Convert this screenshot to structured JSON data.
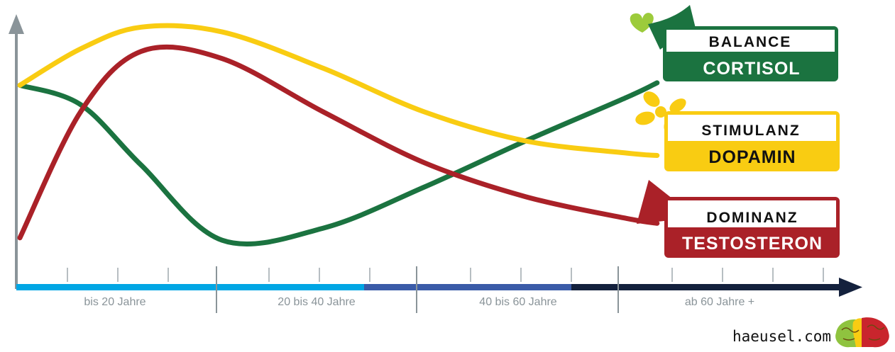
{
  "chart_data": {
    "type": "line",
    "title": "",
    "xlabel": "",
    "ylabel": "",
    "x_scale": "Lebensalter",
    "age_bands": [
      {
        "label": "bis 20 Jahre",
        "color": "#00a6e4"
      },
      {
        "label": "20 bis 40 Jahre",
        "color": "#00a6e4"
      },
      {
        "label": "40 bis 60 Jahre",
        "color": "#3a5ba8"
      },
      {
        "label": "ab 60 Jahre +",
        "color": "#14213d"
      }
    ],
    "x": [
      0,
      10,
      20,
      30,
      40,
      50,
      60,
      70,
      80
    ],
    "ylim": [
      0,
      100
    ],
    "series": [
      {
        "key": "cortisol",
        "top_label": "BALANCE",
        "name": "CORTISOL",
        "color": "#1b7340",
        "icon": "heart-icon",
        "values": [
          [
            0,
            73
          ],
          [
            6,
            65
          ],
          [
            12,
            40
          ],
          [
            20,
            9
          ],
          [
            30,
            14
          ],
          [
            40,
            31
          ],
          [
            50,
            50
          ],
          [
            60,
            68
          ],
          [
            63,
            74
          ]
        ]
      },
      {
        "key": "dopamin",
        "top_label": "STIMULANZ",
        "name": "DOPAMIN",
        "color": "#f9cc12",
        "icon": "propeller-icon",
        "values": [
          [
            0,
            73
          ],
          [
            6,
            88
          ],
          [
            12,
            97
          ],
          [
            20,
            95
          ],
          [
            30,
            80
          ],
          [
            40,
            62
          ],
          [
            50,
            50
          ],
          [
            60,
            45
          ],
          [
            63,
            44
          ]
        ]
      },
      {
        "key": "testosteron",
        "top_label": "DOMINANZ",
        "name": "TESTOSTERON",
        "color": "#aa2128",
        "icon": "arrow-icon",
        "values": [
          [
            0,
            10
          ],
          [
            6,
            62
          ],
          [
            12,
            87
          ],
          [
            20,
            84
          ],
          [
            30,
            62
          ],
          [
            40,
            41
          ],
          [
            50,
            27
          ],
          [
            60,
            18
          ],
          [
            63,
            16
          ]
        ]
      }
    ],
    "grid": false,
    "legend": "right"
  },
  "brand": {
    "text": "haeusel.com",
    "icon": "brain-icon"
  },
  "colors": {
    "axis": "#8a9499"
  }
}
